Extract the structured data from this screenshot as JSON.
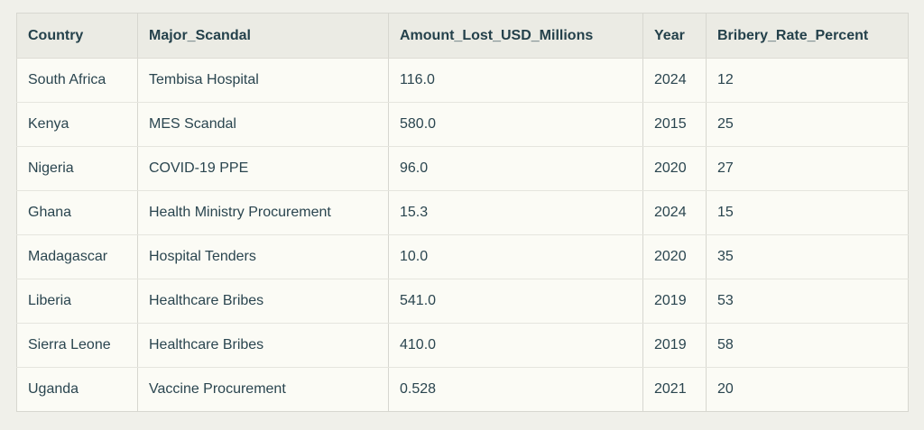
{
  "table": {
    "columns": [
      "Country",
      "Major_Scandal",
      "Amount_Lost_USD_Millions",
      "Year",
      "Bribery_Rate_Percent"
    ],
    "rows": [
      [
        "South Africa",
        "Tembisa Hospital",
        "116.0",
        "2024",
        "12"
      ],
      [
        "Kenya",
        "MES Scandal",
        "580.0",
        "2015",
        "25"
      ],
      [
        "Nigeria",
        "COVID-19 PPE",
        "96.0",
        "2020",
        "27"
      ],
      [
        "Ghana",
        "Health Ministry Procurement",
        "15.3",
        "2024",
        "15"
      ],
      [
        "Madagascar",
        "Hospital Tenders",
        "10.0",
        "2020",
        "35"
      ],
      [
        "Liberia",
        "Healthcare Bribes",
        "541.0",
        "2019",
        "53"
      ],
      [
        "Sierra Leone",
        "Healthcare Bribes",
        "410.0",
        "2019",
        "58"
      ],
      [
        "Uganda",
        "Vaccine Procurement",
        "0.528",
        "2021",
        "20"
      ]
    ]
  },
  "colors": {
    "page_background": "#f0f0ea",
    "header_background": "#ebebe4",
    "cell_background": "#fbfbf5",
    "text": "#2a454f",
    "border": "#d7d7d0",
    "row_divider": "#e5e5de"
  },
  "chart_data": {
    "type": "table",
    "title": "",
    "columns": [
      "Country",
      "Major_Scandal",
      "Amount_Lost_USD_Millions",
      "Year",
      "Bribery_Rate_Percent"
    ],
    "records": [
      {
        "Country": "South Africa",
        "Major_Scandal": "Tembisa Hospital",
        "Amount_Lost_USD_Millions": 116.0,
        "Year": 2024,
        "Bribery_Rate_Percent": 12
      },
      {
        "Country": "Kenya",
        "Major_Scandal": "MES Scandal",
        "Amount_Lost_USD_Millions": 580.0,
        "Year": 2015,
        "Bribery_Rate_Percent": 25
      },
      {
        "Country": "Nigeria",
        "Major_Scandal": "COVID-19 PPE",
        "Amount_Lost_USD_Millions": 96.0,
        "Year": 2020,
        "Bribery_Rate_Percent": 27
      },
      {
        "Country": "Ghana",
        "Major_Scandal": "Health Ministry Procurement",
        "Amount_Lost_USD_Millions": 15.3,
        "Year": 2024,
        "Bribery_Rate_Percent": 15
      },
      {
        "Country": "Madagascar",
        "Major_Scandal": "Hospital Tenders",
        "Amount_Lost_USD_Millions": 10.0,
        "Year": 2020,
        "Bribery_Rate_Percent": 35
      },
      {
        "Country": "Liberia",
        "Major_Scandal": "Healthcare Bribes",
        "Amount_Lost_USD_Millions": 541.0,
        "Year": 2019,
        "Bribery_Rate_Percent": 53
      },
      {
        "Country": "Sierra Leone",
        "Major_Scandal": "Healthcare Bribes",
        "Amount_Lost_USD_Millions": 410.0,
        "Year": 2019,
        "Bribery_Rate_Percent": 58
      },
      {
        "Country": "Uganda",
        "Major_Scandal": "Vaccine Procurement",
        "Amount_Lost_USD_Millions": 0.528,
        "Year": 2021,
        "Bribery_Rate_Percent": 20
      }
    ]
  }
}
